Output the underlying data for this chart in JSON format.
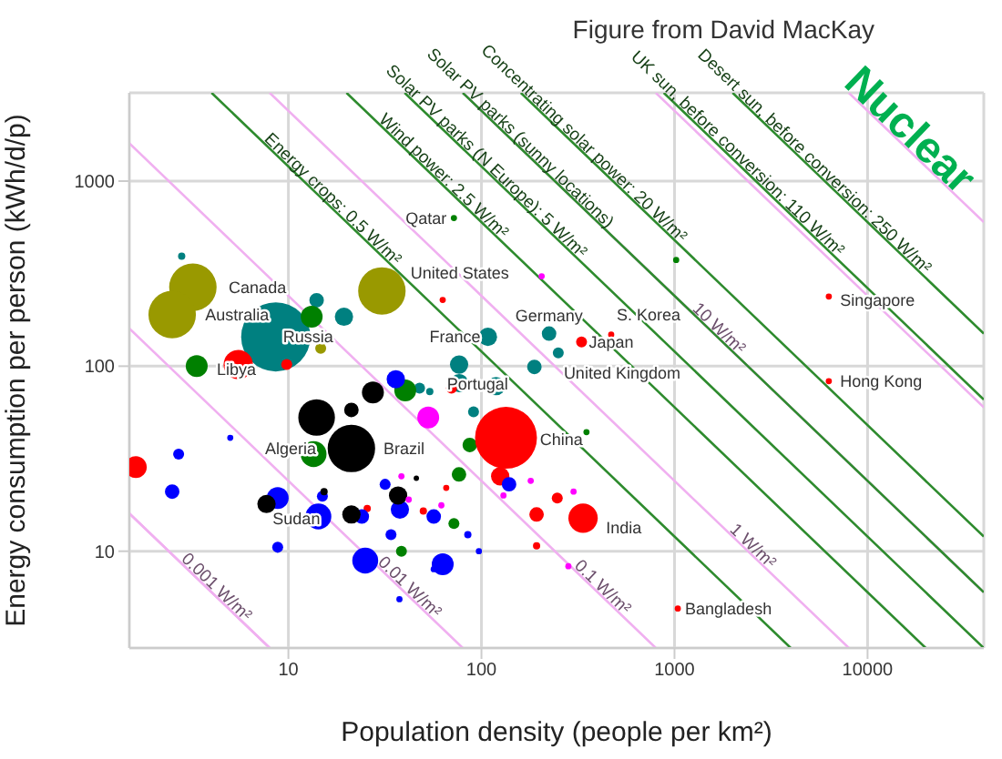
{
  "chart_data": {
    "type": "bubble",
    "xlabel": "Population density (people per km²)",
    "ylabel": "Energy consumption per person (kWh/d/p)",
    "log": "xy",
    "grid": true,
    "xlim": [
      1.5,
      40000
    ],
    "ylim": [
      3,
      3000
    ],
    "xticks": [
      10,
      100,
      1000,
      10000
    ],
    "yticks": [
      10,
      100,
      1000
    ],
    "series": [
      {
        "type": "line",
        "color": "#f0b0f0",
        "marker": "none",
        "x": [
          1.5,
          8
        ],
        "values": [
          16,
          3
        ]
      },
      {
        "type": "line",
        "color": "#f0b0f0",
        "marker": "none",
        "name": "0.001 W/m²",
        "x": [
          1.5,
          4,
          8
        ],
        "values": [
          16,
          6,
          3
        ]
      },
      {
        "type": "line",
        "color": "#f0b0f0",
        "marker": "none",
        "name": "0.01 W/m²",
        "x": [
          1.5,
          40,
          80
        ],
        "values": [
          160,
          6,
          3
        ]
      },
      {
        "type": "line",
        "color": "#f0b0f0",
        "marker": "none",
        "name": "0.1 W/m²",
        "x": [
          1.5,
          400,
          800
        ],
        "values": [
          1600,
          6,
          3
        ]
      },
      {
        "type": "line",
        "color": "#f0b0f0",
        "marker": "none",
        "name": "1 W/m²",
        "x": [
          8,
          2400,
          8000
        ],
        "values": [
          3000,
          10,
          3
        ]
      },
      {
        "type": "line",
        "color": "#f0b0f0",
        "marker": "none",
        "name": "10 W/m²",
        "x": [
          80,
          1600,
          40000
        ],
        "values": [
          3000,
          150,
          6
        ]
      },
      {
        "type": "line",
        "color": "#f0b0f0",
        "marker": "none",
        "x": [
          800,
          40000
        ],
        "values": [
          3000,
          60
        ]
      },
      {
        "type": "line",
        "color": "#f0b0f0",
        "marker": "none",
        "x": [
          8000,
          40000
        ],
        "values": [
          3000,
          600
        ]
      },
      {
        "type": "line",
        "color": "#2e8b2e",
        "marker": "none",
        "name": "Energy crops: 0.5 W/m²",
        "x": [
          4,
          16,
          4000
        ],
        "values": [
          3000,
          750,
          3
        ]
      },
      {
        "type": "line",
        "color": "#2e8b2e",
        "marker": "none",
        "name": "Wind power: 2.5 W/m²",
        "x": [
          20,
          60,
          20000
        ],
        "values": [
          3000,
          1000,
          3
        ]
      },
      {
        "type": "line",
        "color": "#2e8b2e",
        "marker": "none",
        "name": "Solar PV parks (N Europe): 5 W/m²",
        "x": [
          40,
          100,
          40000
        ],
        "values": [
          3000,
          1200,
          3
        ]
      },
      {
        "type": "line",
        "color": "#2e8b2e",
        "marker": "none",
        "name": "Solar PV parks (sunny locations)",
        "x": [
          80,
          150,
          40000
        ],
        "values": [
          3000,
          1600,
          6
        ]
      },
      {
        "type": "line",
        "color": "#2e8b2e",
        "marker": "none",
        "name": "Concentrating solar power: 20 W/m²",
        "x": [
          160,
          320,
          40000
        ],
        "values": [
          3000,
          1500,
          12
        ]
      },
      {
        "type": "line",
        "color": "#2e8b2e",
        "marker": "none",
        "name": "UK sun, before conversion: 110 W/m²",
        "x": [
          880,
          2000,
          40000
        ],
        "values": [
          3000,
          1320,
          66
        ]
      },
      {
        "type": "line",
        "color": "#2e8b2e",
        "marker": "none",
        "name": "Desert sun, before conversion: 250 W/m²",
        "x": [
          2000,
          5000,
          40000
        ],
        "values": [
          3000,
          1200,
          150
        ]
      },
      {
        "color": "#999900",
        "x": [
          3.2,
          2.5,
          30.5,
          14.7
        ],
        "values": [
          267,
          190,
          255,
          125
        ],
        "sizes": [
          0.47,
          0.47,
          0.47,
          0.025
        ]
      },
      {
        "color": "#008080",
        "x": [
          8.6,
          19.4,
          14,
          2.8,
          108,
          224,
          250,
          188,
          76.6,
          76.6,
          91,
          119,
          47.8,
          54
        ],
        "values": [
          144,
          185,
          227,
          393,
          144,
          150,
          118,
          99,
          102,
          81,
          56.6,
          78,
          76,
          73
        ],
        "sizes": [
          1,
          0.07,
          0.044,
          0.011,
          0.07,
          0.044,
          0.025,
          0.044,
          0.07,
          0.07,
          0.025,
          0.07,
          0.025,
          0.011
        ]
      },
      {
        "color": "#008000",
        "x": [
          3.35,
          13.2,
          13.5,
          40.3,
          87,
          76.5,
          72,
          38.5,
          72,
          1020,
          350
        ],
        "values": [
          100,
          185,
          33.5,
          74,
          37.5,
          26,
          14.1,
          10,
          632,
          375,
          44
        ],
        "sizes": [
          0.1,
          0.1,
          0.14,
          0.1,
          0.044,
          0.044,
          0.025,
          0.025,
          0.008,
          0.008,
          0.008
        ]
      },
      {
        "color": "#ff0000",
        "x": [
          1.62,
          5.5,
          9.8,
          134,
          125,
          336,
          247,
          193,
          193,
          1040,
          330,
          470,
          63,
          70,
          50,
          25.6,
          65.7,
          6300,
          6300
        ],
        "values": [
          28.5,
          102,
          102,
          41,
          25.4,
          15.1,
          19.4,
          15.8,
          10.7,
          4.9,
          135,
          148,
          228,
          76,
          16.5,
          17,
          22,
          238,
          83
        ],
        "sizes": [
          0.1,
          0.18,
          0.025,
          0.8,
          0.07,
          0.18,
          0.025,
          0.044,
          0.011,
          0.008,
          0.025,
          0.008,
          0.008,
          0.025,
          0.011,
          0.011,
          0.008,
          0.008,
          0.008
        ]
      },
      {
        "color": "#0000ff",
        "x": [
          2.5,
          2.7,
          5.0,
          8.8,
          8.8,
          15,
          14.3,
          25,
          36,
          31.7,
          24,
          37.8,
          34,
          63,
          56.6,
          85,
          97,
          56.6,
          37.6,
          139
        ],
        "values": [
          21,
          33.5,
          41,
          19.4,
          10.5,
          19.8,
          15.4,
          8.9,
          85,
          23,
          15.4,
          16.8,
          12.3,
          8.5,
          15.4,
          12.3,
          10,
          8,
          5.5,
          23
        ],
        "sizes": [
          0.044,
          0.025,
          0.008,
          0.1,
          0.025,
          0.025,
          0.14,
          0.14,
          0.07,
          0.025,
          0.044,
          0.07,
          0.025,
          0.1,
          0.044,
          0.011,
          0.008,
          0.008,
          0.008,
          0.044
        ]
      },
      {
        "color": "#000000",
        "x": [
          21.2,
          14,
          27.4,
          21.2,
          7.7,
          15.3,
          21.2,
          37,
          46
        ],
        "values": [
          35.9,
          52.8,
          72,
          58,
          18,
          21,
          15.8,
          20,
          24.8
        ],
        "sizes": [
          0.47,
          0.28,
          0.1,
          0.044,
          0.07,
          0.011,
          0.07,
          0.07,
          0.006
        ]
      },
      {
        "color": "#ff00ff",
        "x": [
          53,
          38.5,
          42,
          62,
          180,
          282,
          300,
          130,
          205
        ],
        "values": [
          52.8,
          25.4,
          19,
          17.7,
          24,
          8.3,
          21,
          20,
          306
        ],
        "sizes": [
          0.1,
          0.008,
          0.008,
          0.008,
          0.008,
          0.008,
          0.008,
          0.008,
          0.008
        ]
      }
    ],
    "annotations": [
      "Figure from David MacKay",
      "Nuclear",
      {
        "text": "Canada",
        "x": 4.5,
        "y": 267
      },
      {
        "text": "Australia",
        "x": 3.4,
        "y": 190
      },
      {
        "text": "Russia",
        "x": 8.6,
        "y": 144
      },
      {
        "text": "Libya",
        "x": 3.9,
        "y": 96
      },
      {
        "text": "Algeria",
        "x": 6.95,
        "y": 36
      },
      {
        "text": "Brazil",
        "x": 28.5,
        "y": 35.9
      },
      {
        "text": "Sudan",
        "x": 7.6,
        "y": 15
      },
      {
        "text": "United States",
        "x": 39.4,
        "y": 320
      },
      {
        "text": "Qatar",
        "x": 72,
        "y": 632
      },
      {
        "text": "France",
        "x": 108,
        "y": 144
      },
      {
        "text": "United Kingdom",
        "x": 250,
        "y": 118
      },
      {
        "text": "Germany",
        "x": 224,
        "y": 150
      },
      {
        "text": "Japan",
        "x": 330,
        "y": 135
      },
      {
        "text": "S. Korea",
        "x": 470,
        "y": 148
      },
      {
        "text": "Portugal",
        "x": 150,
        "y": 80
      },
      {
        "text": "China",
        "x": 184,
        "y": 40
      },
      {
        "text": "India",
        "x": 405,
        "y": 13.4
      },
      {
        "text": "Bangladesh",
        "x": 1040,
        "y": 4.9
      },
      {
        "text": "Singapore",
        "x": 6600,
        "y": 228
      },
      {
        "text": "Hong Kong",
        "x": 6600,
        "y": 83
      }
    ]
  }
}
